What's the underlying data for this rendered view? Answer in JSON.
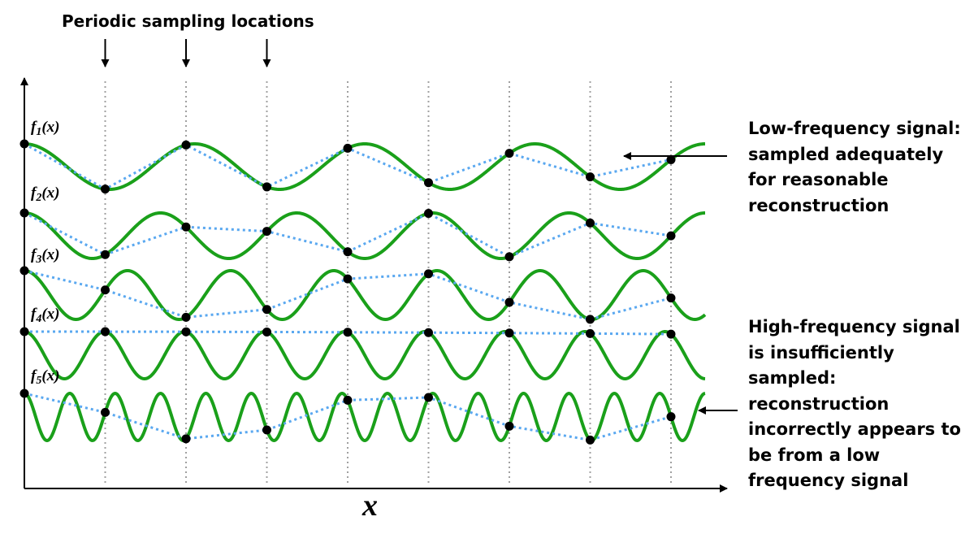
{
  "sampling_label": "Periodic sampling locations",
  "x_axis_label": "x",
  "signals": [
    {
      "name": "f",
      "sub": "1",
      "arg": "(x)",
      "cycles": 4
    },
    {
      "name": "f",
      "sub": "2",
      "arg": "(x)",
      "cycles": 5
    },
    {
      "name": "f",
      "sub": "3",
      "arg": "(x)",
      "cycles": 6.6
    },
    {
      "name": "f",
      "sub": "4",
      "arg": "(x)",
      "cycles": 8.5
    },
    {
      "name": "f",
      "sub": "5",
      "arg": "(x)",
      "cycles": 15
    }
  ],
  "callouts": {
    "low_frequency": [
      "Low-frequency signal:",
      "sampled adequately",
      "for reasonable",
      "reconstruction"
    ],
    "high_frequency": [
      "High-frequency signal",
      "is insufficiently",
      "sampled:",
      "reconstruction",
      "incorrectly appears to",
      "be from a low",
      "frequency signal"
    ]
  },
  "colors": {
    "signal": "#1aa01a",
    "reconstruction": "#5aa8f0",
    "sample_point": "#000000",
    "grid": "#a0a0a0",
    "axis": "#000000"
  }
}
